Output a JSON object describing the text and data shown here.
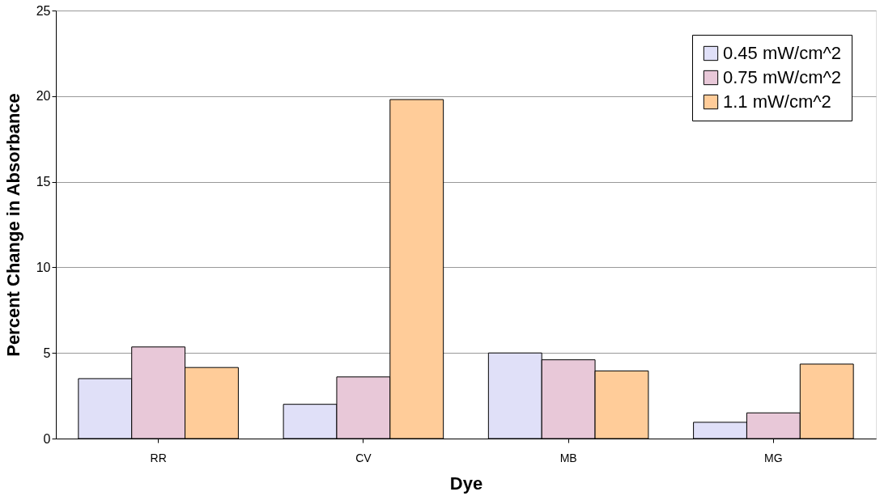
{
  "chart_data": {
    "type": "bar",
    "xlabel": "Dye",
    "ylabel": "Percent Change in Absorbance",
    "categories": [
      "RR",
      "CV",
      "MB",
      "MG"
    ],
    "series": [
      {
        "name": "0.45 mW/cm^2",
        "color": "#e0e0f8",
        "values": [
          3.5,
          2.0,
          5.0,
          0.95
        ]
      },
      {
        "name": "0.75 mW/cm^2",
        "color": "#e8c8d8",
        "values": [
          5.35,
          3.6,
          4.6,
          1.5
        ]
      },
      {
        "name": "1.1 mW/cm^2",
        "color": "#ffcc99",
        "values": [
          4.15,
          19.8,
          3.95,
          4.35
        ]
      }
    ],
    "ylim": [
      0,
      25
    ],
    "yticks": [
      0,
      5,
      10,
      15,
      20,
      25
    ],
    "grid": "y",
    "legend": "top right"
  }
}
